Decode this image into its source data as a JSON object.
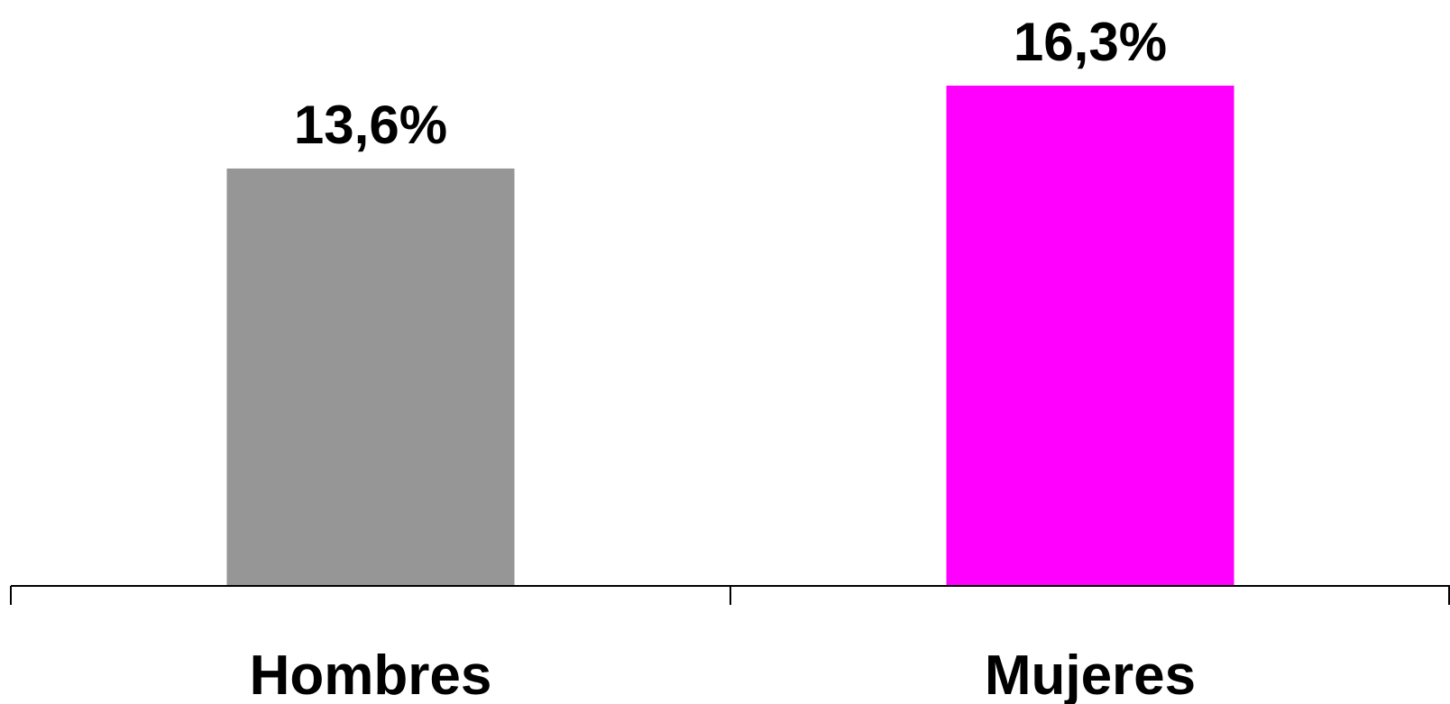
{
  "chart_data": {
    "type": "bar",
    "categories": [
      "Hombres",
      "Mujeres"
    ],
    "values": [
      13.6,
      16.3
    ],
    "value_labels": [
      "13,6%",
      "16,3%"
    ],
    "bar_colors": [
      "#969696",
      "#FF00FF"
    ],
    "ylim": [
      0,
      16.3
    ],
    "grid": false,
    "legend": "none"
  }
}
